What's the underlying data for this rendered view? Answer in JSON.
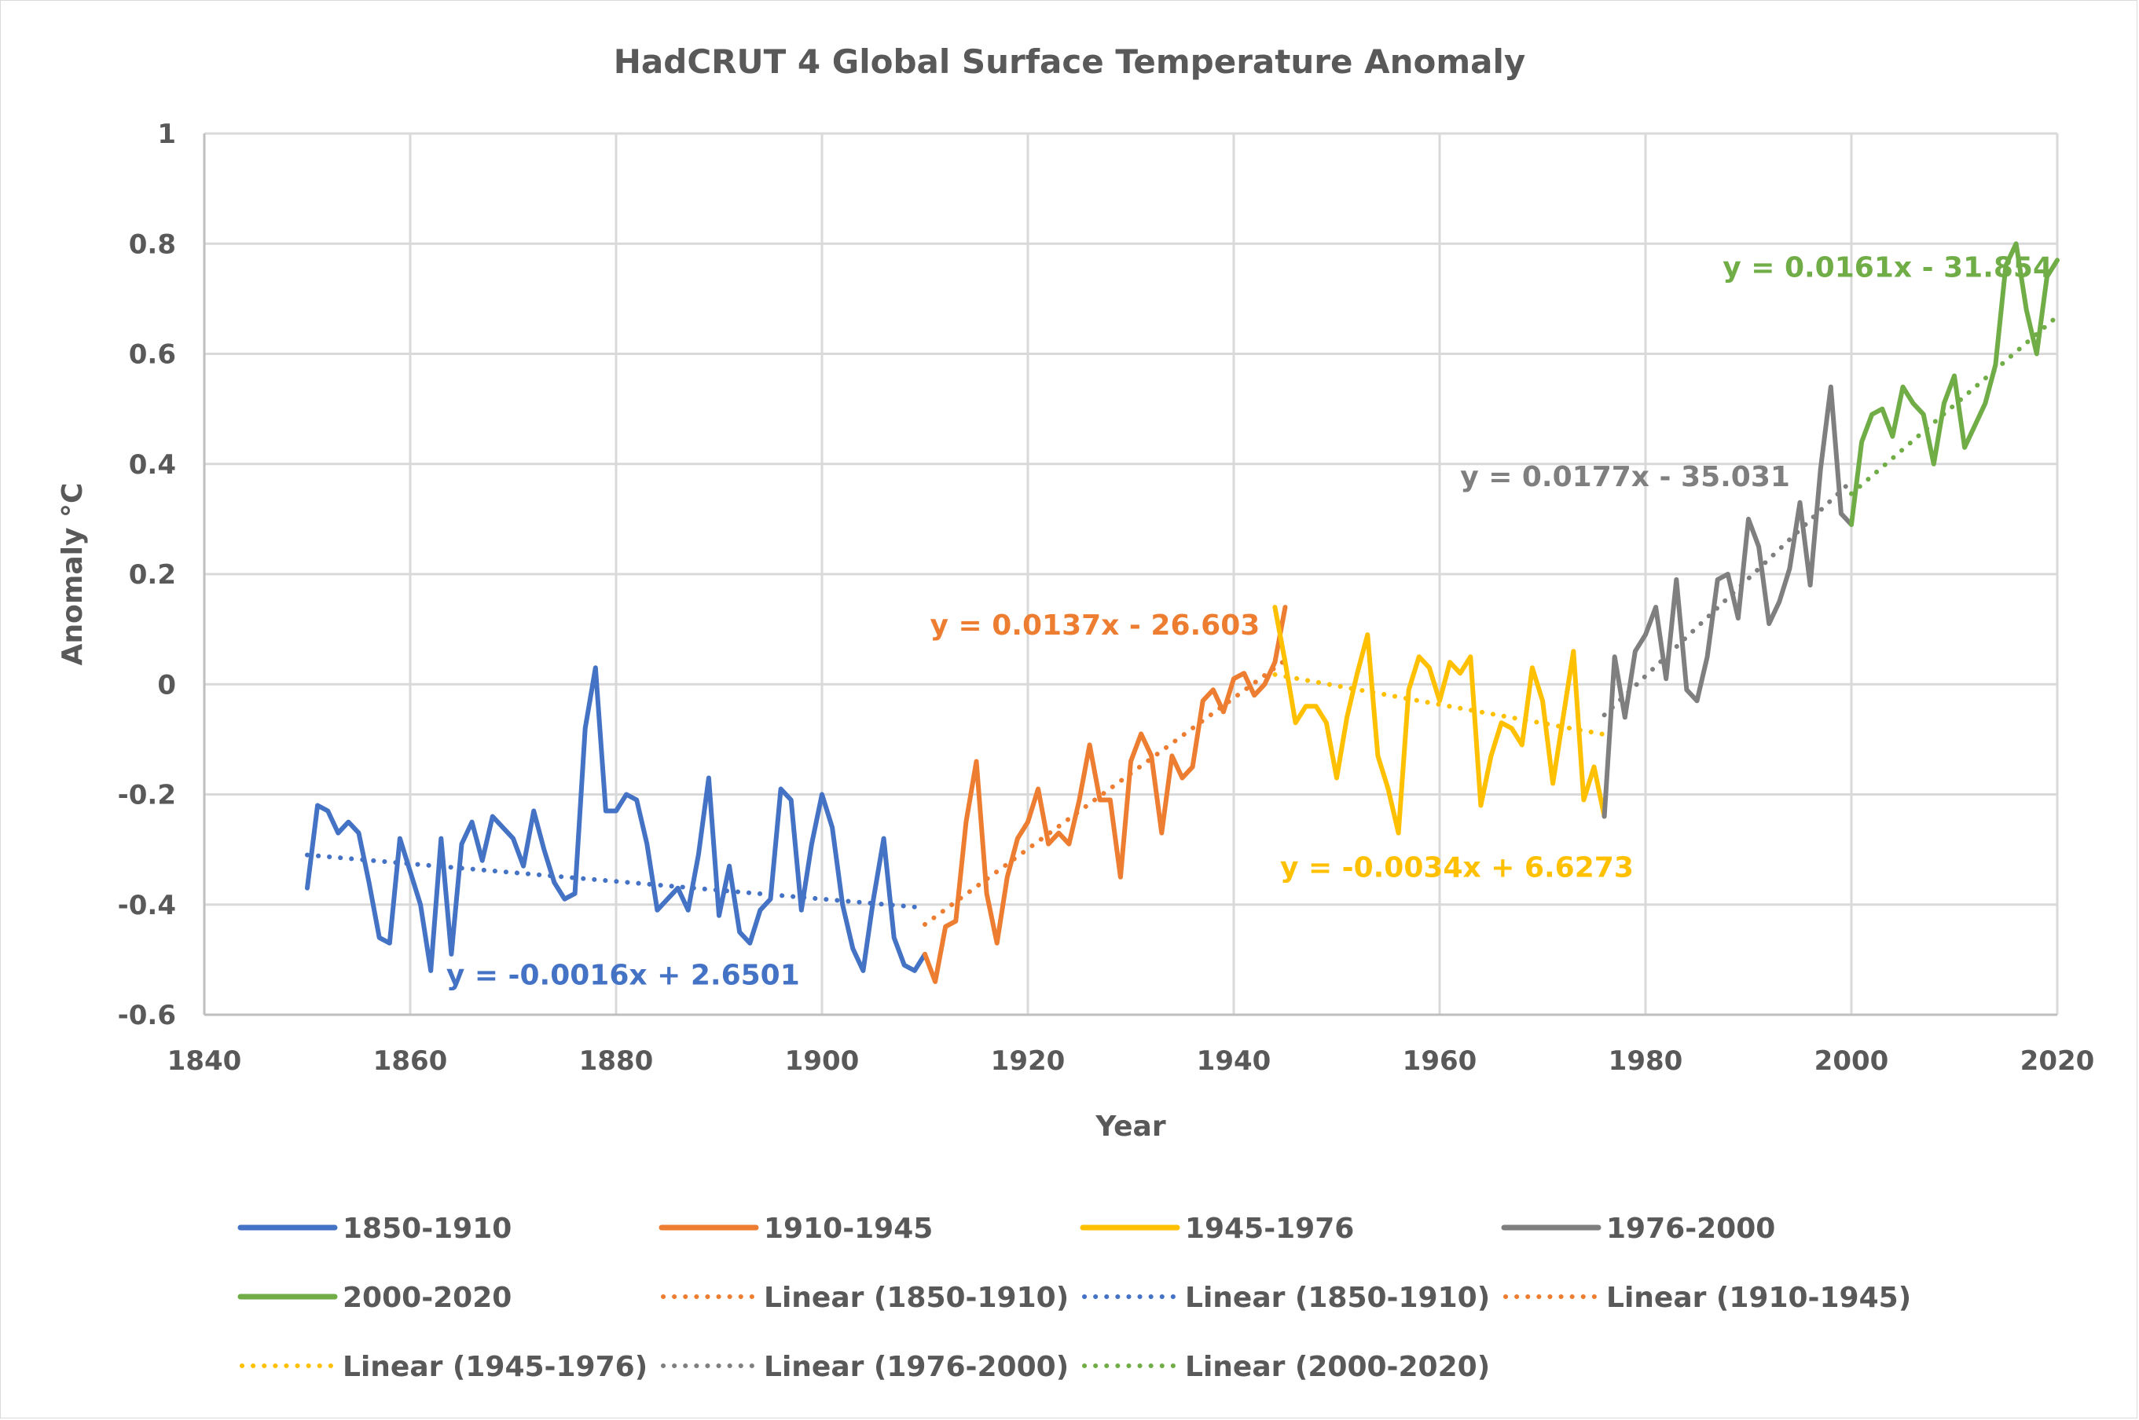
{
  "chart_data": {
    "type": "line",
    "title": "HadCRUT 4 Global Surface Temperature Anomaly",
    "xlabel": "Year",
    "ylabel": "Anomaly °C",
    "xlim": [
      1840,
      2020
    ],
    "ylim": [
      -0.6,
      1
    ],
    "x_ticks": [
      "1840",
      "1860",
      "1880",
      "1900",
      "1920",
      "1940",
      "1960",
      "1980",
      "2000",
      "2020"
    ],
    "y_ticks": [
      "1",
      "0.8",
      "0.6",
      "0.4",
      "0.2",
      "0",
      "-0.2",
      "-0.4",
      "-0.6"
    ],
    "grid": true,
    "legend_position": "bottom",
    "series": [
      {
        "name": "1850-1910",
        "color": "#4472C4",
        "start_year": 1850,
        "values": [
          -0.37,
          -0.22,
          -0.23,
          -0.27,
          -0.25,
          -0.27,
          -0.36,
          -0.46,
          -0.47,
          -0.28,
          -0.34,
          -0.4,
          -0.52,
          -0.28,
          -0.49,
          -0.29,
          -0.25,
          -0.32,
          -0.24,
          -0.26,
          -0.28,
          -0.33,
          -0.23,
          -0.3,
          -0.36,
          -0.39,
          -0.38,
          -0.08,
          0.03,
          -0.23,
          -0.23,
          -0.2,
          -0.21,
          -0.29,
          -0.41,
          -0.39,
          -0.37,
          -0.41,
          -0.31,
          -0.17,
          -0.42,
          -0.33,
          -0.45,
          -0.47,
          -0.41,
          -0.39,
          -0.19,
          -0.21,
          -0.41,
          -0.29,
          -0.2,
          -0.26,
          -0.4,
          -0.48,
          -0.52,
          -0.39,
          -0.28,
          -0.46,
          -0.51,
          -0.52,
          -0.49
        ]
      },
      {
        "name": "1910-1945",
        "color": "#ED7D31",
        "start_year": 1910,
        "values": [
          -0.49,
          -0.54,
          -0.44,
          -0.43,
          -0.25,
          -0.14,
          -0.38,
          -0.47,
          -0.35,
          -0.28,
          -0.25,
          -0.19,
          -0.29,
          -0.27,
          -0.29,
          -0.21,
          -0.11,
          -0.21,
          -0.21,
          -0.35,
          -0.14,
          -0.09,
          -0.13,
          -0.27,
          -0.13,
          -0.17,
          -0.15,
          -0.03,
          -0.01,
          -0.05,
          0.01,
          0.02,
          -0.02,
          0.0,
          0.04,
          0.14
        ]
      },
      {
        "name": "1945-1976",
        "color": "#FFC000",
        "start_year": 1944,
        "values": [
          0.14,
          0.04,
          -0.07,
          -0.04,
          -0.04,
          -0.07,
          -0.17,
          -0.06,
          0.02,
          0.09,
          -0.13,
          -0.19,
          -0.27,
          -0.01,
          0.05,
          0.03,
          -0.03,
          0.04,
          0.02,
          0.05,
          -0.22,
          -0.13,
          -0.07,
          -0.08,
          -0.11,
          0.03,
          -0.03,
          -0.18,
          -0.06,
          0.06,
          -0.21,
          -0.15,
          -0.24
        ]
      },
      {
        "name": "1976-2000",
        "color": "#7F7F7F",
        "start_year": 1976,
        "values": [
          -0.24,
          0.05,
          -0.06,
          0.06,
          0.09,
          0.14,
          0.01,
          0.19,
          -0.01,
          -0.03,
          0.05,
          0.19,
          0.2,
          0.12,
          0.3,
          0.25,
          0.11,
          0.15,
          0.21,
          0.33,
          0.18,
          0.39,
          0.54,
          0.31,
          0.29
        ]
      },
      {
        "name": "2000-2020",
        "color": "#70AD47",
        "start_year": 2000,
        "values": [
          0.29,
          0.44,
          0.49,
          0.5,
          0.45,
          0.54,
          0.51,
          0.49,
          0.4,
          0.51,
          0.56,
          0.43,
          0.47,
          0.51,
          0.58,
          0.76,
          0.8,
          0.68,
          0.6,
          0.74,
          0.77
        ]
      }
    ],
    "trendlines": [
      {
        "name": "Linear (1850-1910)",
        "color": "#4472C4",
        "x_range": [
          1850,
          1910
        ],
        "slope": -0.0016,
        "intercept": 2.6501,
        "label": "y = -0.0016x + 2.6501"
      },
      {
        "name": "Linear (1910-1945)",
        "color": "#ED7D31",
        "x_range": [
          1910,
          1945
        ],
        "slope": 0.0137,
        "intercept": -26.603,
        "label": "y = 0.0137x - 26.603"
      },
      {
        "name": "Linear (1945-1976)",
        "color": "#FFC000",
        "x_range": [
          1944,
          1976
        ],
        "slope": -0.0034,
        "intercept": 6.6273,
        "label": "y = -0.0034x + 6.6273"
      },
      {
        "name": "Linear (1976-2000)",
        "color": "#7F7F7F",
        "x_range": [
          1976,
          2000
        ],
        "slope": 0.0177,
        "intercept": -35.031,
        "label": "y = 0.0177x - 35.031"
      },
      {
        "name": "Linear (2000-2020)",
        "color": "#70AD47",
        "x_range": [
          2000,
          2020
        ],
        "slope": 0.0161,
        "intercept": -31.854,
        "label": "y = 0.0161x - 31.854"
      }
    ],
    "equation_labels": [
      {
        "text": "y = -0.0016x + 2.6501",
        "color": "#4472C4",
        "anchor_year": 1863.5,
        "anchor_value": -0.545
      },
      {
        "text": "y = 0.0137x - 26.603",
        "color": "#ED7D31",
        "anchor_year": 1910.5,
        "anchor_value": 0.09
      },
      {
        "text": "y = -0.0034x + 6.6273",
        "color": "#FFC000",
        "anchor_year": 1944.5,
        "anchor_value": -0.35
      },
      {
        "text": "y = 0.0177x - 35.031",
        "color": "#7F7F7F",
        "anchor_year": 1962,
        "anchor_value": 0.36
      },
      {
        "text": "y = 0.0161x - 31.854",
        "color": "#70AD47",
        "anchor_year": 1987.5,
        "anchor_value": 0.74
      }
    ],
    "legend": [
      {
        "label": "1850-1910",
        "color": "#4472C4",
        "style": "solid"
      },
      {
        "label": "1910-1945",
        "color": "#ED7D31",
        "style": "solid"
      },
      {
        "label": "1945-1976",
        "color": "#FFC000",
        "style": "solid"
      },
      {
        "label": "1976-2000",
        "color": "#7F7F7F",
        "style": "solid"
      },
      {
        "label": "2000-2020",
        "color": "#70AD47",
        "style": "solid"
      },
      {
        "label": "Linear (1850-1910)",
        "color": "#ED7D31",
        "style": "dotted"
      },
      {
        "label": "Linear (1850-1910)",
        "color": "#4472C4",
        "style": "dotted"
      },
      {
        "label": "Linear (1910-1945)",
        "color": "#ED7D31",
        "style": "dotted"
      },
      {
        "label": "Linear (1945-1976)",
        "color": "#FFC000",
        "style": "dotted"
      },
      {
        "label": "Linear (1976-2000)",
        "color": "#7F7F7F",
        "style": "dotted"
      },
      {
        "label": "Linear (2000-2020)",
        "color": "#70AD47",
        "style": "dotted"
      }
    ]
  }
}
